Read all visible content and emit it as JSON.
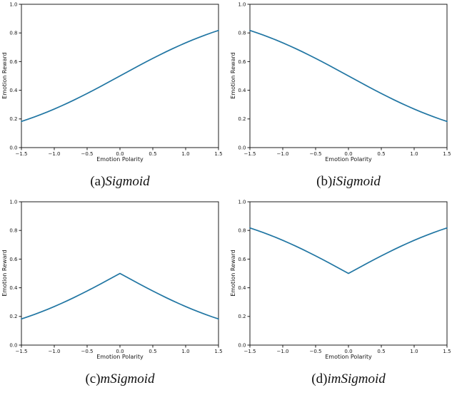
{
  "figure": {
    "background": "#ffffff",
    "line_color": "#2176a3",
    "axis_color": "#1c1c1c",
    "text_color": "#161616"
  },
  "chart_data": [
    {
      "id": "a",
      "type": "line",
      "caption_prefix": "(a)",
      "caption_label": "Sigmoid",
      "xlabel": "Emotion Polarity",
      "ylabel": "Emotion Reward",
      "xlim": [
        -1.5,
        1.5
      ],
      "ylim": [
        0.0,
        1.0
      ],
      "grid": false,
      "legend": null,
      "xticks": [
        -1.5,
        -1.0,
        -0.5,
        0.0,
        0.5,
        1.0,
        1.5
      ],
      "xtick_labels": [
        "−1.5",
        "−1.0",
        "−0.5",
        "0.0",
        "0.5",
        "1.0",
        "1.5"
      ],
      "yticks": [
        0.0,
        0.2,
        0.4,
        0.6,
        0.8,
        1.0
      ],
      "ytick_labels": [
        "0.0",
        "0.2",
        "0.4",
        "0.6",
        "0.8",
        "1.0"
      ],
      "x": [
        -1.5,
        -1.4,
        -1.3,
        -1.2,
        -1.1,
        -1.0,
        -0.9,
        -0.8,
        -0.7,
        -0.6,
        -0.5,
        -0.4,
        -0.3,
        -0.2,
        -0.1,
        0.0,
        0.1,
        0.2,
        0.3,
        0.4,
        0.5,
        0.6,
        0.7,
        0.8,
        0.9,
        1.0,
        1.1,
        1.2,
        1.3,
        1.4,
        1.5
      ],
      "y": [
        0.1824,
        0.1978,
        0.2142,
        0.2315,
        0.2497,
        0.2689,
        0.2891,
        0.31,
        0.3318,
        0.3543,
        0.3775,
        0.4013,
        0.4256,
        0.4502,
        0.475,
        0.5,
        0.525,
        0.5498,
        0.5744,
        0.5987,
        0.6225,
        0.6457,
        0.6682,
        0.69,
        0.7109,
        0.7311,
        0.7503,
        0.7685,
        0.7858,
        0.8022,
        0.8176
      ]
    },
    {
      "id": "b",
      "type": "line",
      "caption_prefix": "(b)",
      "caption_label": "iSigmoid",
      "xlabel": "Emotion Polarity",
      "ylabel": "Emotion Reward",
      "xlim": [
        -1.5,
        1.5
      ],
      "ylim": [
        0.0,
        1.0
      ],
      "grid": false,
      "legend": null,
      "xticks": [
        -1.5,
        -1.0,
        -0.5,
        0.0,
        0.5,
        1.0,
        1.5
      ],
      "xtick_labels": [
        "−1.5",
        "−1.0",
        "−0.5",
        "0.0",
        "0.5",
        "1.0",
        "1.5"
      ],
      "yticks": [
        0.0,
        0.2,
        0.4,
        0.6,
        0.8,
        1.0
      ],
      "ytick_labels": [
        "0.0",
        "0.2",
        "0.4",
        "0.6",
        "0.8",
        "1.0"
      ],
      "x": [
        -1.5,
        -1.4,
        -1.3,
        -1.2,
        -1.1,
        -1.0,
        -0.9,
        -0.8,
        -0.7,
        -0.6,
        -0.5,
        -0.4,
        -0.3,
        -0.2,
        -0.1,
        0.0,
        0.1,
        0.2,
        0.3,
        0.4,
        0.5,
        0.6,
        0.7,
        0.8,
        0.9,
        1.0,
        1.1,
        1.2,
        1.3,
        1.4,
        1.5
      ],
      "y": [
        0.8176,
        0.8022,
        0.7858,
        0.7685,
        0.7503,
        0.7311,
        0.7109,
        0.69,
        0.6682,
        0.6457,
        0.6225,
        0.5987,
        0.5744,
        0.5498,
        0.525,
        0.5,
        0.475,
        0.4502,
        0.4256,
        0.4013,
        0.3775,
        0.3543,
        0.3318,
        0.31,
        0.2891,
        0.2689,
        0.2497,
        0.2315,
        0.2142,
        0.1978,
        0.1824
      ]
    },
    {
      "id": "c",
      "type": "line",
      "caption_prefix": "(c)",
      "caption_label": "mSigmoid",
      "xlabel": "Emotion Polarity",
      "ylabel": "Emotion Reward",
      "xlim": [
        -1.5,
        1.5
      ],
      "ylim": [
        0.0,
        1.0
      ],
      "grid": false,
      "legend": null,
      "xticks": [
        -1.5,
        -1.0,
        -0.5,
        0.0,
        0.5,
        1.0,
        1.5
      ],
      "xtick_labels": [
        "−1.5",
        "−1.0",
        "−0.5",
        "0.0",
        "0.5",
        "1.0",
        "1.5"
      ],
      "yticks": [
        0.0,
        0.2,
        0.4,
        0.6,
        0.8,
        1.0
      ],
      "ytick_labels": [
        "0.0",
        "0.2",
        "0.4",
        "0.6",
        "0.8",
        "1.0"
      ],
      "x": [
        -1.5,
        -1.4,
        -1.3,
        -1.2,
        -1.1,
        -1.0,
        -0.9,
        -0.8,
        -0.7,
        -0.6,
        -0.5,
        -0.4,
        -0.3,
        -0.2,
        -0.1,
        0.0,
        0.1,
        0.2,
        0.3,
        0.4,
        0.5,
        0.6,
        0.7,
        0.8,
        0.9,
        1.0,
        1.1,
        1.2,
        1.3,
        1.4,
        1.5
      ],
      "y": [
        0.1824,
        0.1978,
        0.2142,
        0.2315,
        0.2497,
        0.2689,
        0.2891,
        0.31,
        0.3318,
        0.3543,
        0.3775,
        0.4013,
        0.4256,
        0.4502,
        0.475,
        0.5,
        0.475,
        0.4502,
        0.4256,
        0.4013,
        0.3775,
        0.3543,
        0.3318,
        0.31,
        0.2891,
        0.2689,
        0.2497,
        0.2315,
        0.2142,
        0.1978,
        0.1824
      ]
    },
    {
      "id": "d",
      "type": "line",
      "caption_prefix": "(d)",
      "caption_label": "imSigmoid",
      "xlabel": "Emotion Polarity",
      "ylabel": "Emotion Reward",
      "xlim": [
        -1.5,
        1.5
      ],
      "ylim": [
        0.0,
        1.0
      ],
      "grid": false,
      "legend": null,
      "xticks": [
        -1.5,
        -1.0,
        -0.5,
        0.0,
        0.5,
        1.0,
        1.5
      ],
      "xtick_labels": [
        "−1.5",
        "−1.0",
        "−0.5",
        "0.0",
        "0.5",
        "1.0",
        "1.5"
      ],
      "yticks": [
        0.0,
        0.2,
        0.4,
        0.6,
        0.8,
        1.0
      ],
      "ytick_labels": [
        "0.0",
        "0.2",
        "0.4",
        "0.6",
        "0.8",
        "1.0"
      ],
      "x": [
        -1.5,
        -1.4,
        -1.3,
        -1.2,
        -1.1,
        -1.0,
        -0.9,
        -0.8,
        -0.7,
        -0.6,
        -0.5,
        -0.4,
        -0.3,
        -0.2,
        -0.1,
        0.0,
        0.1,
        0.2,
        0.3,
        0.4,
        0.5,
        0.6,
        0.7,
        0.8,
        0.9,
        1.0,
        1.1,
        1.2,
        1.3,
        1.4,
        1.5
      ],
      "y": [
        0.8176,
        0.8022,
        0.7858,
        0.7685,
        0.7503,
        0.7311,
        0.7109,
        0.69,
        0.6682,
        0.6457,
        0.6225,
        0.5987,
        0.5744,
        0.5498,
        0.525,
        0.5,
        0.525,
        0.5498,
        0.5744,
        0.5987,
        0.6225,
        0.6457,
        0.6682,
        0.69,
        0.7109,
        0.7311,
        0.7503,
        0.7685,
        0.7858,
        0.8022,
        0.8176
      ]
    }
  ]
}
